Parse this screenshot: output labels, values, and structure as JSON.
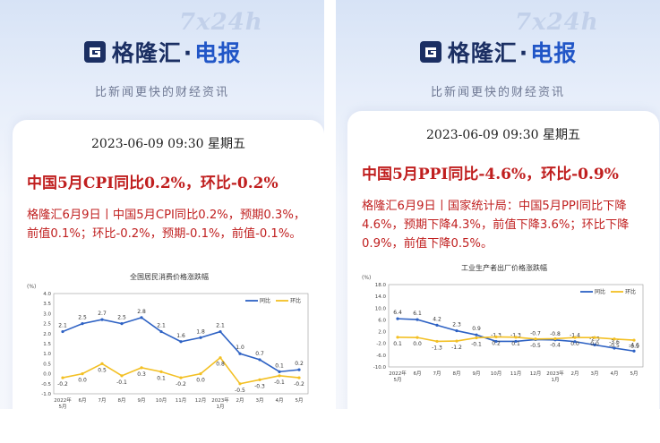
{
  "watermark": "7x24h",
  "brand": {
    "name": "格隆汇",
    "dot": "·",
    "channel": "电报",
    "slogan": "比新闻更快的财经资讯"
  },
  "colors": {
    "headline": "#c01f1f",
    "brand_navy": "#1b2f63",
    "brand_blue": "#2156c7",
    "series_yoy": "#2e62c4",
    "series_mom": "#f3c024"
  },
  "panels": [
    {
      "datetime": "2023-06-09 09:30 星期五",
      "headline": "中国5月CPI同比0.2%，环比-0.2%",
      "body": "格隆汇6月9日丨中国5月CPI同比0.2%，预期0.3%，前值0.1%；环比-0.2%，预期-0.1%，前值-0.1%。",
      "chart_data": {
        "type": "line",
        "title": "全国居民消费价格涨跌幅",
        "unit": "(%)",
        "categories": [
          "2022年\n5月",
          "6月",
          "7月",
          "8月",
          "9月",
          "10月",
          "11月",
          "12月",
          "2023年\n1月",
          "2月",
          "3月",
          "4月",
          "5月"
        ],
        "yticks": [
          "4.0",
          "3.5",
          "3.0",
          "2.5",
          "2.0",
          "1.5",
          "1.0",
          "0.5",
          "0.0",
          "-0.5",
          "-1.0"
        ],
        "ylim": [
          -1.0,
          4.0
        ],
        "series": [
          {
            "name": "同比",
            "color": "#2e62c4",
            "values": [
              2.1,
              2.5,
              2.7,
              2.5,
              2.8,
              2.1,
              1.6,
              1.8,
              2.1,
              1.0,
              0.7,
              0.1,
              0.2
            ]
          },
          {
            "name": "环比",
            "color": "#f3c024",
            "values": [
              -0.2,
              0.0,
              0.5,
              -0.1,
              0.3,
              0.1,
              -0.2,
              0.0,
              0.8,
              -0.5,
              -0.3,
              -0.1,
              -0.2
            ]
          }
        ]
      }
    },
    {
      "datetime": "2023-06-09 09:30 星期五",
      "headline": "中国5月PPI同比-4.6%，环比-0.9%",
      "body": "格隆汇6月9日丨国家统计局：中国5月PPI同比下降4.6%，预期下降4.3%，前值下降3.6%；环比下降0.9%，前值下降0.5%。",
      "chart_data": {
        "type": "line",
        "title": "工业生产者出厂价格涨跌幅",
        "unit": "(%)",
        "categories": [
          "2022年\n5月",
          "6月",
          "7月",
          "8月",
          "9月",
          "10月",
          "11月",
          "12月",
          "2023年\n1月",
          "2月",
          "3月",
          "4月",
          "5月"
        ],
        "yticks": [
          "18.0",
          "14.0",
          "10.0",
          "6.0",
          "2.0",
          "-2.0",
          "-6.0",
          "-10.0"
        ],
        "ylim": [
          -10.0,
          18.0
        ],
        "series": [
          {
            "name": "同比",
            "color": "#2e62c4",
            "values": [
              6.4,
              6.1,
              4.2,
              2.3,
              0.9,
              -1.3,
              -1.3,
              -0.7,
              -0.8,
              -1.4,
              -2.5,
              -3.6,
              -4.6
            ]
          },
          {
            "name": "环比",
            "color": "#f3c024",
            "values": [
              0.1,
              0.0,
              -1.3,
              -1.2,
              -0.1,
              0.2,
              0.1,
              -0.5,
              -0.4,
              0.0,
              0.0,
              -0.5,
              -0.9
            ]
          }
        ]
      }
    }
  ]
}
